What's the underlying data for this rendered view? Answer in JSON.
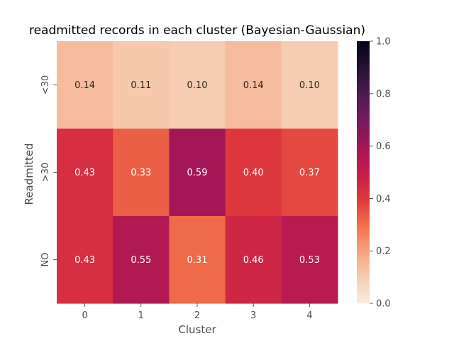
{
  "chart_data": {
    "type": "heatmap",
    "title": "readmitted records in each cluster (Bayesian-Gaussian)",
    "xlabel": "Cluster",
    "ylabel": "Readmitted",
    "x_categories": [
      "0",
      "1",
      "2",
      "3",
      "4"
    ],
    "y_categories": [
      "<30",
      ">30",
      "NO"
    ],
    "values": [
      [
        0.14,
        0.11,
        0.1,
        0.14,
        0.1
      ],
      [
        0.43,
        0.33,
        0.59,
        0.4,
        0.37
      ],
      [
        0.43,
        0.55,
        0.31,
        0.46,
        0.53
      ]
    ],
    "value_labels": [
      [
        "0.14",
        "0.11",
        "0.10",
        "0.14",
        "0.10"
      ],
      [
        "0.43",
        "0.33",
        "0.59",
        "0.40",
        "0.37"
      ],
      [
        "0.43",
        "0.55",
        "0.31",
        "0.46",
        "0.53"
      ]
    ],
    "colorbar": {
      "min": 0.0,
      "max": 1.0,
      "ticks": [
        "0.0",
        "0.2",
        "0.4",
        "0.6",
        "0.8",
        "1.0"
      ],
      "colormap": "rocket_r"
    },
    "grid": false
  }
}
